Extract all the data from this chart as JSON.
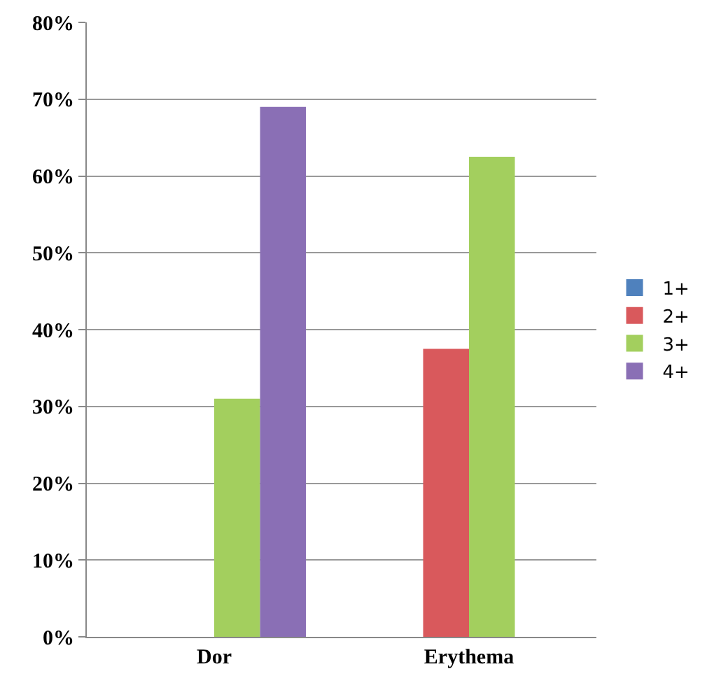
{
  "chart_data": {
    "type": "bar",
    "categories": [
      "Dor",
      "Erythema"
    ],
    "series": [
      {
        "name": "1+",
        "color": "#4f81bd",
        "values": [
          0,
          0
        ]
      },
      {
        "name": "2+",
        "color": "#d9595c",
        "values": [
          0,
          37.5
        ]
      },
      {
        "name": "3+",
        "color": "#a3cf5e",
        "values": [
          31,
          62.5
        ]
      },
      {
        "name": "4+",
        "color": "#8a6fb5",
        "values": [
          69,
          0
        ]
      }
    ],
    "ylim": [
      0,
      80
    ],
    "yticks": [
      {
        "value": 0,
        "label": "0%"
      },
      {
        "value": 10,
        "label": "10%"
      },
      {
        "value": 20,
        "label": "20%"
      },
      {
        "value": 30,
        "label": "30%"
      },
      {
        "value": 40,
        "label": "40%"
      },
      {
        "value": 50,
        "label": "50%"
      },
      {
        "value": 60,
        "label": "60%"
      },
      {
        "value": 70,
        "label": "70%"
      },
      {
        "value": 80,
        "label": "80%"
      }
    ],
    "grid": "y",
    "legend": "right"
  }
}
